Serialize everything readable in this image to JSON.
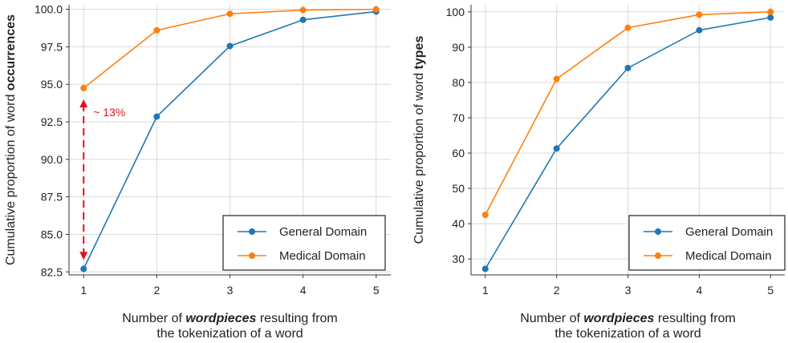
{
  "chart_data": [
    {
      "type": "line",
      "xlabel": {
        "line1_prefix": "Number of ",
        "line1_emph": "wordpieces",
        "line1_suffix": " resulting from",
        "line2": "the tokenization of a word"
      },
      "ylabel": {
        "prefix": "Cumulative proportion of word ",
        "emph": "occurrences"
      },
      "x": [
        1,
        2,
        3,
        4,
        5
      ],
      "x_ticks": [
        "1",
        "2",
        "3",
        "4",
        "5"
      ],
      "ylim": [
        82.3,
        100.3
      ],
      "y_ticks": [
        82.5,
        85.0,
        87.5,
        90.0,
        92.5,
        95.0,
        97.5,
        100.0
      ],
      "y_tick_labels": [
        "82.5",
        "85.0",
        "87.5",
        "90.0",
        "92.5",
        "95.0",
        "97.5",
        "100.0"
      ],
      "grid": true,
      "legend_position": "bottom-right",
      "series": [
        {
          "name": "General Domain",
          "color": "#1f77b4",
          "values": [
            82.7,
            92.85,
            97.55,
            99.3,
            99.85
          ]
        },
        {
          "name": "Medical Domain",
          "color": "#ff7f0e",
          "values": [
            94.75,
            98.6,
            99.7,
            99.95,
            100.0
          ]
        }
      ],
      "annotation": {
        "text": "~ 13%",
        "color": "#e3101c",
        "x": 1,
        "y_from": 83.3,
        "y_to": 94.0
      }
    },
    {
      "type": "line",
      "xlabel": {
        "line1_prefix": "Number of ",
        "line1_emph": "wordpieces",
        "line1_suffix": " resulting from",
        "line2": "the tokenization of a word"
      },
      "ylabel": {
        "prefix": "Cumulative proportion of word ",
        "emph": "types"
      },
      "x": [
        1,
        2,
        3,
        4,
        5
      ],
      "x_ticks": [
        "1",
        "2",
        "3",
        "4",
        "5"
      ],
      "ylim": [
        25.5,
        102
      ],
      "y_ticks": [
        30,
        40,
        50,
        60,
        70,
        80,
        90,
        100
      ],
      "y_tick_labels": [
        "30",
        "40",
        "50",
        "60",
        "70",
        "80",
        "90",
        "100"
      ],
      "grid": true,
      "legend_position": "bottom-right",
      "series": [
        {
          "name": "General Domain",
          "color": "#1f77b4",
          "values": [
            27.2,
            61.3,
            84.1,
            94.8,
            98.4
          ]
        },
        {
          "name": "Medical Domain",
          "color": "#ff7f0e",
          "values": [
            42.5,
            81.0,
            95.5,
            99.2,
            100.0
          ]
        }
      ]
    }
  ]
}
